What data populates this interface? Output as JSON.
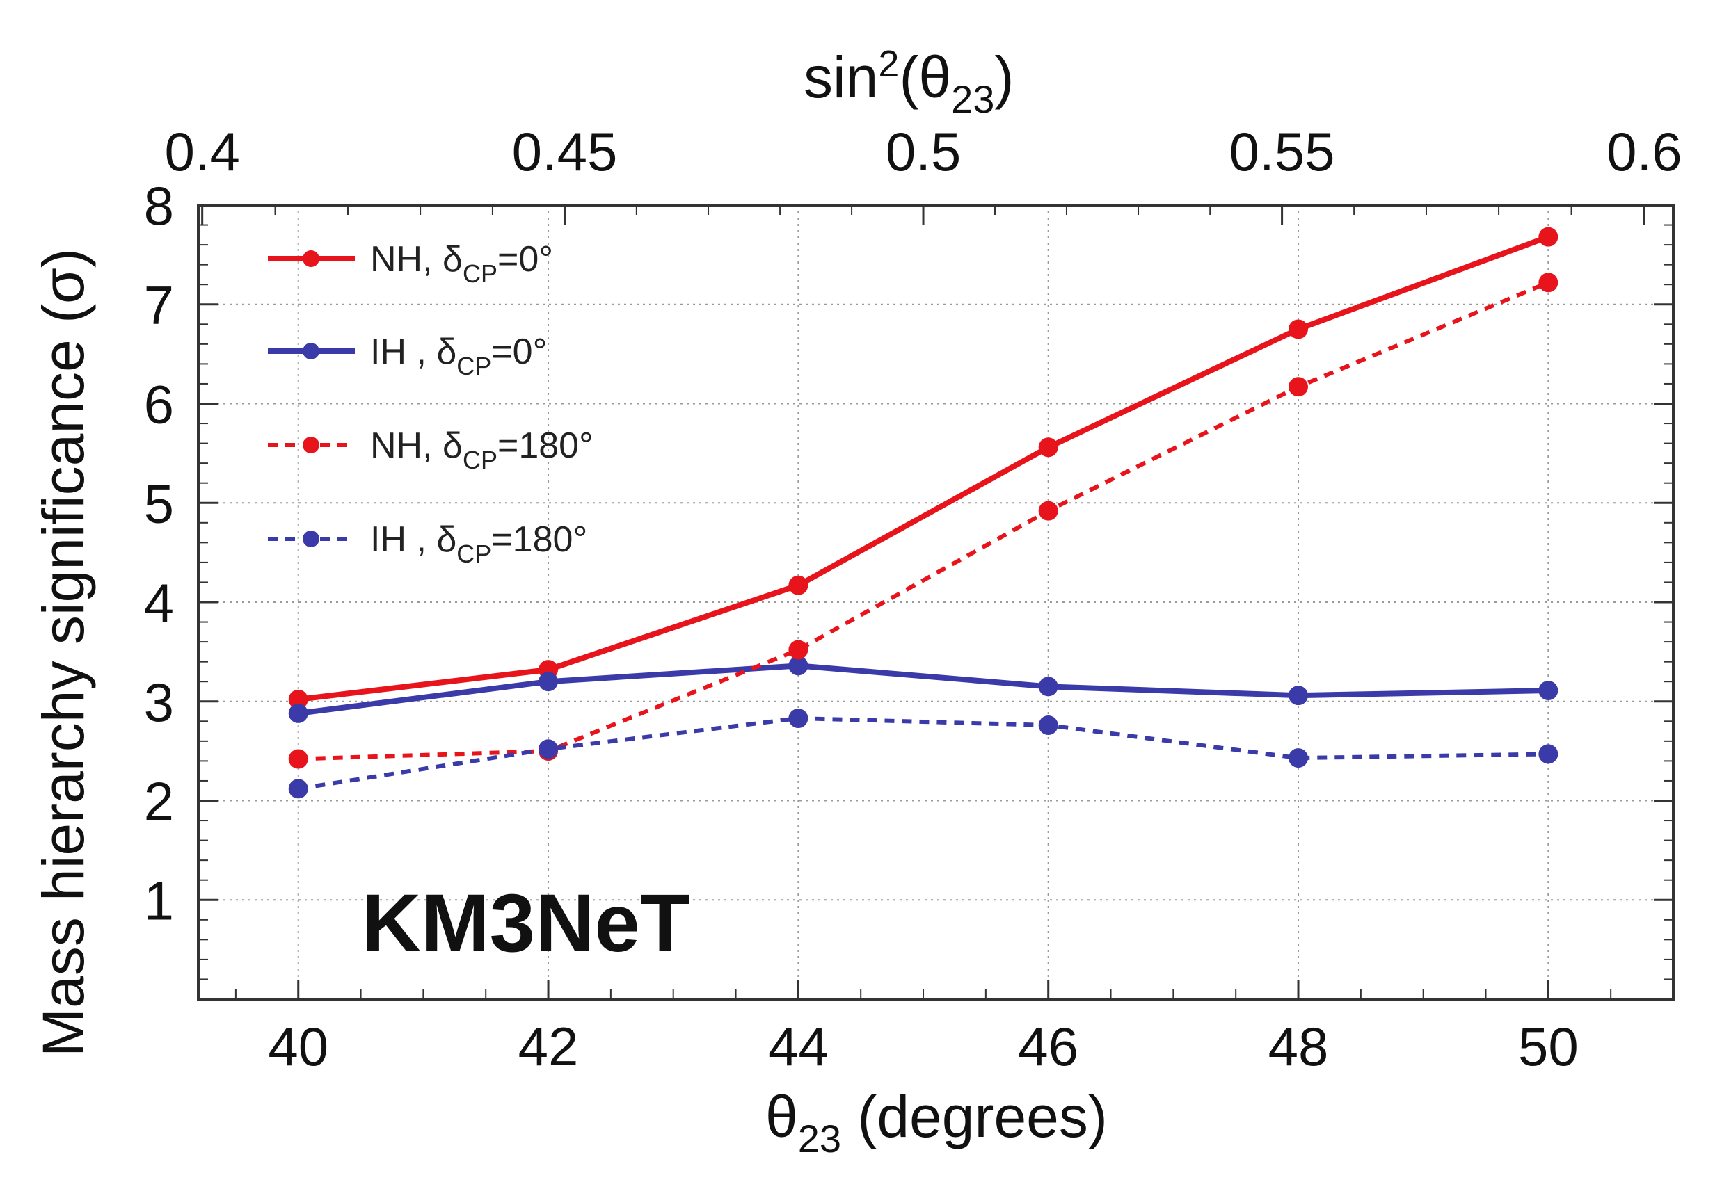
{
  "chart_data": {
    "type": "line",
    "annotation": "KM3NeT",
    "x": [
      40,
      42,
      44,
      46,
      48,
      50
    ],
    "xlim": [
      39.2,
      51.0
    ],
    "ylim": [
      0,
      8
    ],
    "xticks": [
      "40",
      "42",
      "44",
      "46",
      "48",
      "50"
    ],
    "yticks": [
      "1",
      "2",
      "3",
      "4",
      "5",
      "6",
      "7",
      "8"
    ],
    "ylabel": "Mass hierarchy significance (σ)",
    "xlabel": {
      "main": "θ",
      "sub": "23",
      "tail": " (degrees)"
    },
    "top_axis": {
      "ticks": [
        "0.4",
        "0.45",
        "0.5",
        "0.55",
        "0.6"
      ],
      "tick_values": [
        0.4,
        0.45,
        0.5,
        0.55,
        0.6
      ],
      "label": {
        "pre": "sin",
        "sup": "2",
        "mid": "(θ",
        "sub": "23",
        "post": ")"
      }
    },
    "grid": true,
    "legend_position": "top-left",
    "series": [
      {
        "name": "NH, δCP=0°",
        "legend": {
          "main": "NH, δ",
          "sub": "CP",
          "tail": "=0°"
        },
        "color": "#e8141c",
        "dashed": false,
        "values": [
          3.02,
          3.32,
          4.17,
          5.56,
          6.75,
          7.68
        ]
      },
      {
        "name": "IH , δCP=0°",
        "legend": {
          "main": "IH  , δ",
          "sub": "CP",
          "tail": "=0°"
        },
        "color": "#3a3aa8",
        "dashed": false,
        "values": [
          2.88,
          3.2,
          3.36,
          3.15,
          3.06,
          3.11
        ]
      },
      {
        "name": "NH, δCP=180°",
        "legend": {
          "main": "NH, δ",
          "sub": "CP",
          "tail": "=180°"
        },
        "color": "#e8141c",
        "dashed": true,
        "values": [
          2.42,
          2.5,
          3.52,
          4.92,
          6.17,
          7.22
        ]
      },
      {
        "name": "IH , δCP=180°",
        "legend": {
          "main": "IH  , δ",
          "sub": "CP",
          "tail": "=180°"
        },
        "color": "#3a3aa8",
        "dashed": true,
        "values": [
          2.12,
          2.52,
          2.83,
          2.76,
          2.43,
          2.47
        ]
      }
    ]
  }
}
